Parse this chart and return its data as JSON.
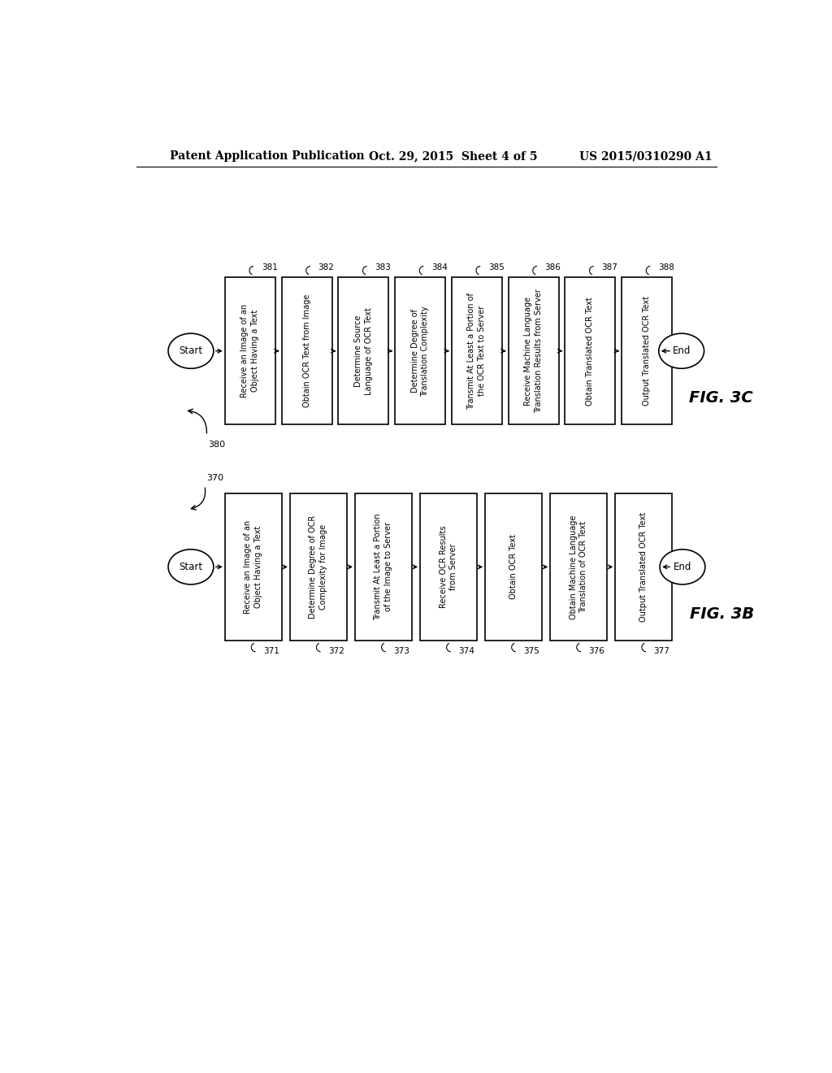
{
  "header_left": "Patent Application Publication",
  "header_mid": "Oct. 29, 2015  Sheet 4 of 5",
  "header_right": "US 2015/0310290 A1",
  "fig3c_label": "FIG. 3C",
  "fig3c_start_label": "Start",
  "fig3c_end_label": "End",
  "fig3c_boxes": [
    {
      "num": "381",
      "text": "Receive an Image of an\nObject Having a Text"
    },
    {
      "num": "382",
      "text": "Obtain OCR Text from Image"
    },
    {
      "num": "383",
      "text": "Determine Source\nLanguage of OCR Text"
    },
    {
      "num": "384",
      "text": "Determine Degree of\nTranslation Complexity"
    },
    {
      "num": "385",
      "text": "Transmit At Least a Portion of\nthe OCR Text to Server"
    },
    {
      "num": "386",
      "text": "Receive Machine Language\nTranslation Results from Server"
    },
    {
      "num": "387",
      "text": "Obtain Translated OCR Text"
    },
    {
      "num": "388",
      "text": "Output Translated OCR Text"
    }
  ],
  "fig3b_label": "FIG. 3B",
  "fig3b_start_label": "Start",
  "fig3b_end_label": "End",
  "fig3b_boxes": [
    {
      "num": "371",
      "text": "Receive an Image of an\nObject Having a Text"
    },
    {
      "num": "372",
      "text": "Determine Degree of OCR\nComplexity for Image"
    },
    {
      "num": "373",
      "text": "Transmit At Least a Portion\nof the Image to Server"
    },
    {
      "num": "374",
      "text": "Receive OCR Results\nfrom Server"
    },
    {
      "num": "375",
      "text": "Obtain OCR Text"
    },
    {
      "num": "376",
      "text": "Obtain Machine Language\nTranslation of OCR Text"
    },
    {
      "num": "377",
      "text": "Output Translated OCR Text"
    }
  ],
  "bg_color": "#ffffff",
  "text_color": "#000000",
  "font_size_box": 7.0,
  "font_size_num": 7.5,
  "font_size_header": 10,
  "font_size_figlabel": 14,
  "font_size_startend": 8.5
}
